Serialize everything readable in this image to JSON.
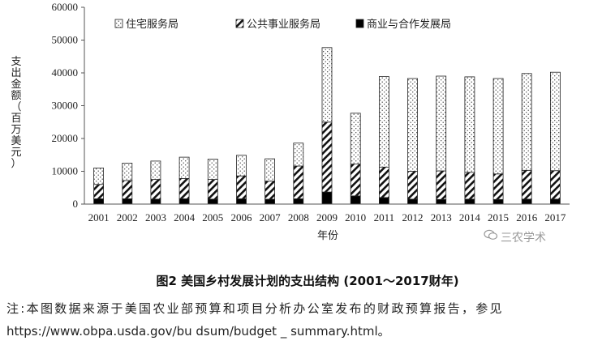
{
  "chart_data": {
    "type": "bar",
    "stacked": true,
    "categories": [
      "2001",
      "2002",
      "2003",
      "2004",
      "2005",
      "2006",
      "2007",
      "2008",
      "2009",
      "2010",
      "2011",
      "2012",
      "2013",
      "2014",
      "2015",
      "2016",
      "2017"
    ],
    "series": [
      {
        "name": "商业与合作发展局",
        "pattern": "solid-black",
        "values": [
          1600,
          1600,
          1500,
          1600,
          1500,
          1600,
          1500,
          1600,
          3700,
          2500,
          2000,
          1500,
          1400,
          1500,
          1400,
          1500,
          1500
        ]
      },
      {
        "name": "公共事业服务局",
        "pattern": "diagonal-hatch",
        "values": [
          4400,
          5600,
          6000,
          6200,
          6000,
          7000,
          5500,
          10000,
          21300,
          9700,
          9300,
          8500,
          8700,
          8200,
          7800,
          8800,
          8700
        ]
      },
      {
        "name": "住宅服务局",
        "pattern": "dotted",
        "values": [
          5000,
          5300,
          5600,
          6500,
          6200,
          6300,
          6800,
          7000,
          22700,
          15500,
          27600,
          28300,
          28900,
          29100,
          29100,
          29500,
          30000
        ]
      }
    ],
    "xlabel": "年份",
    "ylabel": "支出金额（百万美元）",
    "ylim": [
      0,
      60000
    ],
    "yticks": [
      0,
      10000,
      20000,
      30000,
      40000,
      50000,
      60000
    ],
    "grid": false,
    "legend": "top-left"
  },
  "caption": "图2 美国乡村发展计划的支出结构 (2001～2017财年)",
  "note_line1": "注:本图数据来源于美国农业部预算和项目分析办公室发布的财政预算报告，参见",
  "note_line2": "https://www.obpa.usda.gov/bu dsum/budget _ summary.html。",
  "watermark": "三农学术",
  "watermark_icon": "wechat-icon"
}
